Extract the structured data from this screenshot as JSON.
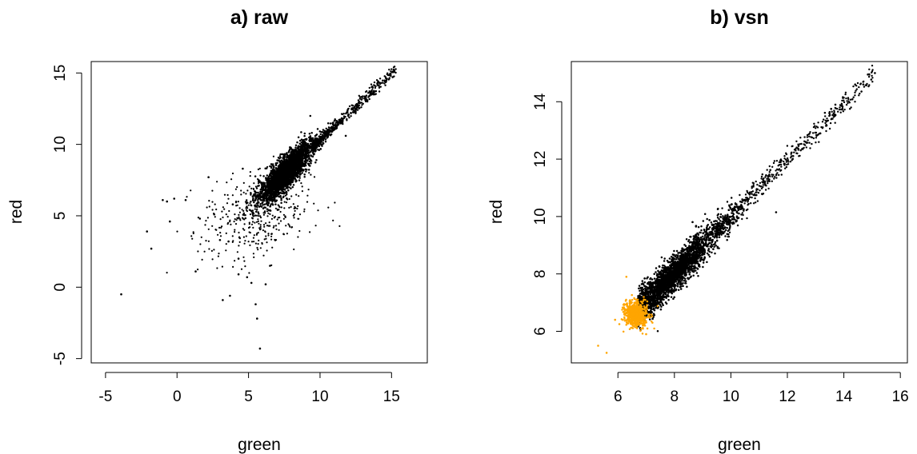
{
  "figure": {
    "background": "#ffffff"
  },
  "chart_data": [
    {
      "type": "scatter",
      "title": "a) raw",
      "xlabel": "green",
      "ylabel": "red",
      "xlim": [
        -6,
        17.5
      ],
      "ylim": [
        -5.3,
        15.8
      ],
      "xticks": [
        -5,
        0,
        5,
        10,
        15
      ],
      "yticks": [
        -5,
        0,
        5,
        10,
        15
      ],
      "grid": false,
      "legend": "none",
      "box": true,
      "series": [
        {
          "color": "#000000",
          "core": {
            "trend_x": [
              6,
              15
            ],
            "trend_y": [
              6.5,
              15
            ],
            "x_mean": 7.6,
            "x_sd": 0.9,
            "spread": 0.55,
            "n": 2600
          },
          "upper_tail": {
            "x_range": [
              9.5,
              15.3
            ],
            "spread": 0.22,
            "n": 500
          },
          "diffuse": {
            "x_center": 5.6,
            "y_center": 5.0,
            "x_sd": 1.9,
            "y_sd": 1.6,
            "n": 420
          },
          "points": [
            {
              "x": -3.9,
              "y": -0.5
            },
            {
              "x": -1.0,
              "y": 6.1
            },
            {
              "x": -0.7,
              "y": 6.0
            },
            {
              "x": -0.5,
              "y": 4.6
            },
            {
              "x": -0.2,
              "y": 6.2
            },
            {
              "x": 0.6,
              "y": 6.1
            },
            {
              "x": -1.8,
              "y": 2.7
            },
            {
              "x": -2.1,
              "y": 3.9
            },
            {
              "x": 1.3,
              "y": 1.1
            },
            {
              "x": 1.6,
              "y": 4.8
            },
            {
              "x": 2.2,
              "y": 7.7
            },
            {
              "x": 2.6,
              "y": 5.1
            },
            {
              "x": 3.0,
              "y": 3.3
            },
            {
              "x": 3.2,
              "y": -0.9
            },
            {
              "x": 3.7,
              "y": -0.6
            },
            {
              "x": 4.3,
              "y": 0.9
            },
            {
              "x": 5.2,
              "y": 0.3
            },
            {
              "x": 5.6,
              "y": -2.2
            },
            {
              "x": 5.8,
              "y": -4.3
            },
            {
              "x": 5.5,
              "y": -1.2
            },
            {
              "x": 4.9,
              "y": 0.7
            },
            {
              "x": 4.3,
              "y": 2.0
            },
            {
              "x": 6.2,
              "y": 0.2
            },
            {
              "x": 3.6,
              "y": 3.2
            },
            {
              "x": 6.5,
              "y": 1.5
            },
            {
              "x": 3.9,
              "y": 5.8
            },
            {
              "x": 4.6,
              "y": 8.3
            },
            {
              "x": 15.1,
              "y": 15.1
            },
            {
              "x": 14.9,
              "y": 14.9
            },
            {
              "x": 11.8,
              "y": 10.6
            }
          ]
        }
      ]
    },
    {
      "type": "scatter",
      "title": "b) vsn",
      "xlabel": "green",
      "ylabel": "red",
      "xlim": [
        4.35,
        16.25
      ],
      "ylim": [
        4.9,
        15.4
      ],
      "xticks": [
        6,
        8,
        10,
        12,
        14,
        16
      ],
      "yticks": [
        6,
        8,
        10,
        12,
        14
      ],
      "grid": false,
      "legend": "none",
      "box": true,
      "series": [
        {
          "color": "#000000",
          "core": {
            "trend_x": [
              6.8,
              15.1
            ],
            "trend_y": [
              6.85,
              15.0
            ],
            "x_min": 6.7,
            "x_mean": 7.9,
            "x_sd": 0.85,
            "spread": 0.3,
            "n": 3000
          },
          "upper_tail": {
            "x_range": [
              9.5,
              15.1
            ],
            "spread": 0.18,
            "n": 520
          },
          "points": [
            {
              "x": 15.1,
              "y": 15.0
            },
            {
              "x": 14.85,
              "y": 14.95
            },
            {
              "x": 14.4,
              "y": 14.6
            },
            {
              "x": 11.6,
              "y": 10.15
            },
            {
              "x": 13.7,
              "y": 13.9
            },
            {
              "x": 13.55,
              "y": 13.75
            }
          ]
        },
        {
          "color": "#ffa500",
          "cluster": {
            "x_center": 6.65,
            "y_center": 6.6,
            "x_sd": 0.2,
            "y_sd": 0.22,
            "n": 620
          },
          "points": [
            {
              "x": 5.3,
              "y": 5.5
            },
            {
              "x": 5.6,
              "y": 5.25
            },
            {
              "x": 6.05,
              "y": 6.25
            },
            {
              "x": 7.0,
              "y": 5.9
            },
            {
              "x": 6.3,
              "y": 7.9
            },
            {
              "x": 5.9,
              "y": 6.4
            }
          ]
        }
      ]
    }
  ]
}
